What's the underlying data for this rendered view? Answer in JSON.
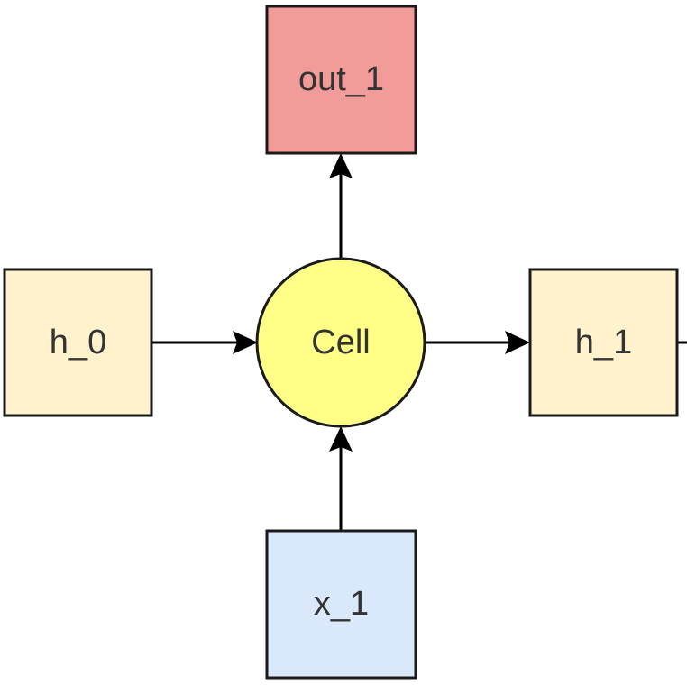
{
  "nodes": {
    "out": {
      "label": "out_1",
      "color": "#f19c99"
    },
    "h0": {
      "label": "h_0",
      "color": "#fff2cc"
    },
    "cell": {
      "label": "Cell",
      "color": "#ffff88"
    },
    "h1": {
      "label": "h_1",
      "color": "#fff2cc"
    },
    "x": {
      "label": "x_1",
      "color": "#dae8fc"
    }
  },
  "edges": [
    {
      "from": "h_0",
      "to": "Cell"
    },
    {
      "from": "Cell",
      "to": "h_1"
    },
    {
      "from": "x_1",
      "to": "Cell"
    },
    {
      "from": "Cell",
      "to": "out_1"
    }
  ]
}
